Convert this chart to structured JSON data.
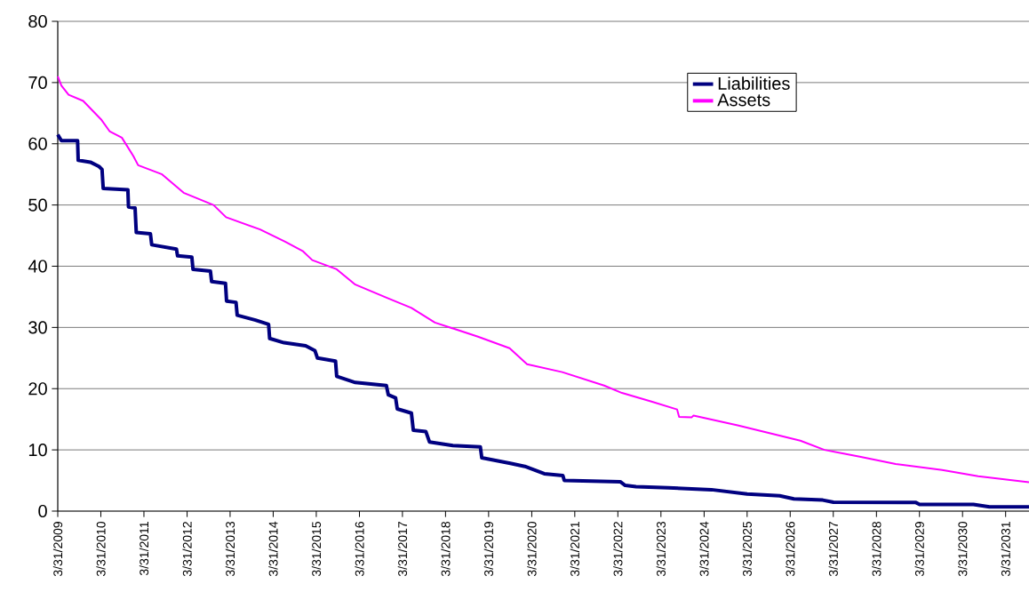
{
  "chart_data": {
    "type": "line",
    "xlim": [
      "2009-03-31",
      "2031-10-15"
    ],
    "ylim": [
      0,
      80
    ],
    "xticks": [
      {
        "value": "2009-03-31",
        "label": "3/31/2009"
      },
      {
        "value": "2010-03-31",
        "label": "3/31/2010"
      },
      {
        "value": "2011-03-31",
        "label": "3/31/2011"
      },
      {
        "value": "2012-03-31",
        "label": "3/31/2012"
      },
      {
        "value": "2013-03-31",
        "label": "3/31/2013"
      },
      {
        "value": "2014-03-31",
        "label": "3/31/2014"
      },
      {
        "value": "2015-03-31",
        "label": "3/31/2015"
      },
      {
        "value": "2016-03-31",
        "label": "3/31/2016"
      },
      {
        "value": "2017-03-31",
        "label": "3/31/2017"
      },
      {
        "value": "2018-03-31",
        "label": "3/31/2018"
      },
      {
        "value": "2019-03-31",
        "label": "3/31/2019"
      },
      {
        "value": "2020-03-31",
        "label": "3/31/2020"
      },
      {
        "value": "2021-03-31",
        "label": "3/31/2021"
      },
      {
        "value": "2022-03-31",
        "label": "3/31/2022"
      },
      {
        "value": "2023-03-31",
        "label": "3/31/2023"
      },
      {
        "value": "2024-03-31",
        "label": "3/31/2024"
      },
      {
        "value": "2025-03-31",
        "label": "3/31/2025"
      },
      {
        "value": "2026-03-31",
        "label": "3/31/2026"
      },
      {
        "value": "2027-03-31",
        "label": "3/31/2027"
      },
      {
        "value": "2028-03-31",
        "label": "3/31/2028"
      },
      {
        "value": "2029-03-31",
        "label": "3/31/2029"
      },
      {
        "value": "2030-03-31",
        "label": "3/31/2030"
      },
      {
        "value": "2031-03-31",
        "label": "3/31/2031"
      }
    ],
    "yticks": [
      0,
      10,
      20,
      30,
      40,
      50,
      60,
      70,
      80
    ],
    "grid": "y",
    "legend": "top right",
    "marker": "none",
    "line_style": "solid",
    "series": [
      {
        "name": "Liabilities",
        "color": "#000080",
        "x": [
          "2009-03-31",
          "2009-05-01",
          "2009-09-15",
          "2009-09-20",
          "2010-01-01",
          "2010-03-15",
          "2010-04-10",
          "2010-04-20",
          "2010-11-15",
          "2010-11-20",
          "2011-01-15",
          "2011-01-25",
          "2011-05-25",
          "2011-06-05",
          "2011-12-31",
          "2012-01-10",
          "2012-05-10",
          "2012-05-20",
          "2012-10-15",
          "2012-10-25",
          "2013-02-20",
          "2013-03-01",
          "2013-05-20",
          "2013-05-30",
          "2013-11-01",
          "2014-02-20",
          "2014-03-01",
          "2014-07-01",
          "2014-12-31",
          "2015-03-20",
          "2015-04-10",
          "2015-09-10",
          "2015-09-20",
          "2016-02-25",
          "2016-11-15",
          "2016-12-01",
          "2017-02-01",
          "2017-02-15",
          "2017-06-15",
          "2017-07-01",
          "2017-10-15",
          "2017-11-15",
          "2018-06-01",
          "2019-01-20",
          "2019-02-01",
          "2019-10-01",
          "2020-02-01",
          "2020-07-15",
          "2020-12-20",
          "2021-01-01",
          "2022-04-20",
          "2022-06-01",
          "2022-09-01",
          "2023-06-01",
          "2024-06-01",
          "2025-03-31",
          "2026-01-01",
          "2026-05-01",
          "2027-01-01",
          "2027-04-01",
          "2029-03-01",
          "2029-04-01",
          "2030-07-01",
          "2030-11-15",
          "2031-10-15"
        ],
        "values": [
          61.5,
          60.5,
          60.5,
          57.3,
          57,
          56.3,
          55.8,
          52.7,
          52.5,
          49.7,
          49.5,
          45.5,
          45.3,
          43.5,
          42.8,
          41.7,
          41.5,
          39.5,
          39.2,
          37.5,
          37.2,
          34.3,
          34.1,
          32,
          31.2,
          30.5,
          28.2,
          27.5,
          27,
          26.2,
          25,
          24.5,
          22,
          21,
          20.5,
          19,
          18.5,
          16.7,
          16,
          13.2,
          13,
          11.3,
          10.7,
          10.5,
          8.7,
          7.8,
          7.3,
          6.1,
          5.8,
          5.0,
          4.8,
          4.2,
          4.0,
          3.8,
          3.5,
          2.8,
          2.5,
          2.0,
          1.8,
          1.45,
          1.4,
          1.1,
          1.1,
          0.7,
          0.7
        ]
      },
      {
        "name": "Assets",
        "color": "#ff00ff",
        "x": [
          "2009-03-31",
          "2009-05-01",
          "2009-07-01",
          "2009-11-01",
          "2010-04-01",
          "2010-06-15",
          "2010-09-25",
          "2010-12-31",
          "2011-02-10",
          "2011-09-01",
          "2012-03-01",
          "2012-11-10",
          "2013-02-25",
          "2013-12-10",
          "2014-07-10",
          "2014-12-05",
          "2015-02-25",
          "2015-09-20",
          "2016-02-25",
          "2016-11-25",
          "2017-06-15",
          "2017-12-31",
          "2018-12-31",
          "2019-09-25",
          "2020-02-20",
          "2020-12-15",
          "2021-12-05",
          "2022-05-05",
          "2023-01-10",
          "2023-08-15",
          "2023-09-01",
          "2023-12-15",
          "2024-01-01",
          "2025-01-10",
          "2026-06-25",
          "2027-01-15",
          "2027-11-10",
          "2028-09-10",
          "2029-10-10",
          "2030-08-10",
          "2031-10-15"
        ],
        "values": [
          71,
          69.5,
          68,
          67,
          64,
          62,
          61,
          58,
          56.5,
          55,
          52,
          50,
          48,
          46,
          44,
          42.5,
          41,
          39.5,
          37,
          34.8,
          33.2,
          30.8,
          28.5,
          26.6,
          24,
          22.7,
          20.5,
          19.3,
          17.9,
          16.6,
          15.4,
          15.3,
          15.6,
          14,
          11.5,
          10,
          8.9,
          7.7,
          6.7,
          5.7,
          4.7
        ]
      }
    ]
  }
}
